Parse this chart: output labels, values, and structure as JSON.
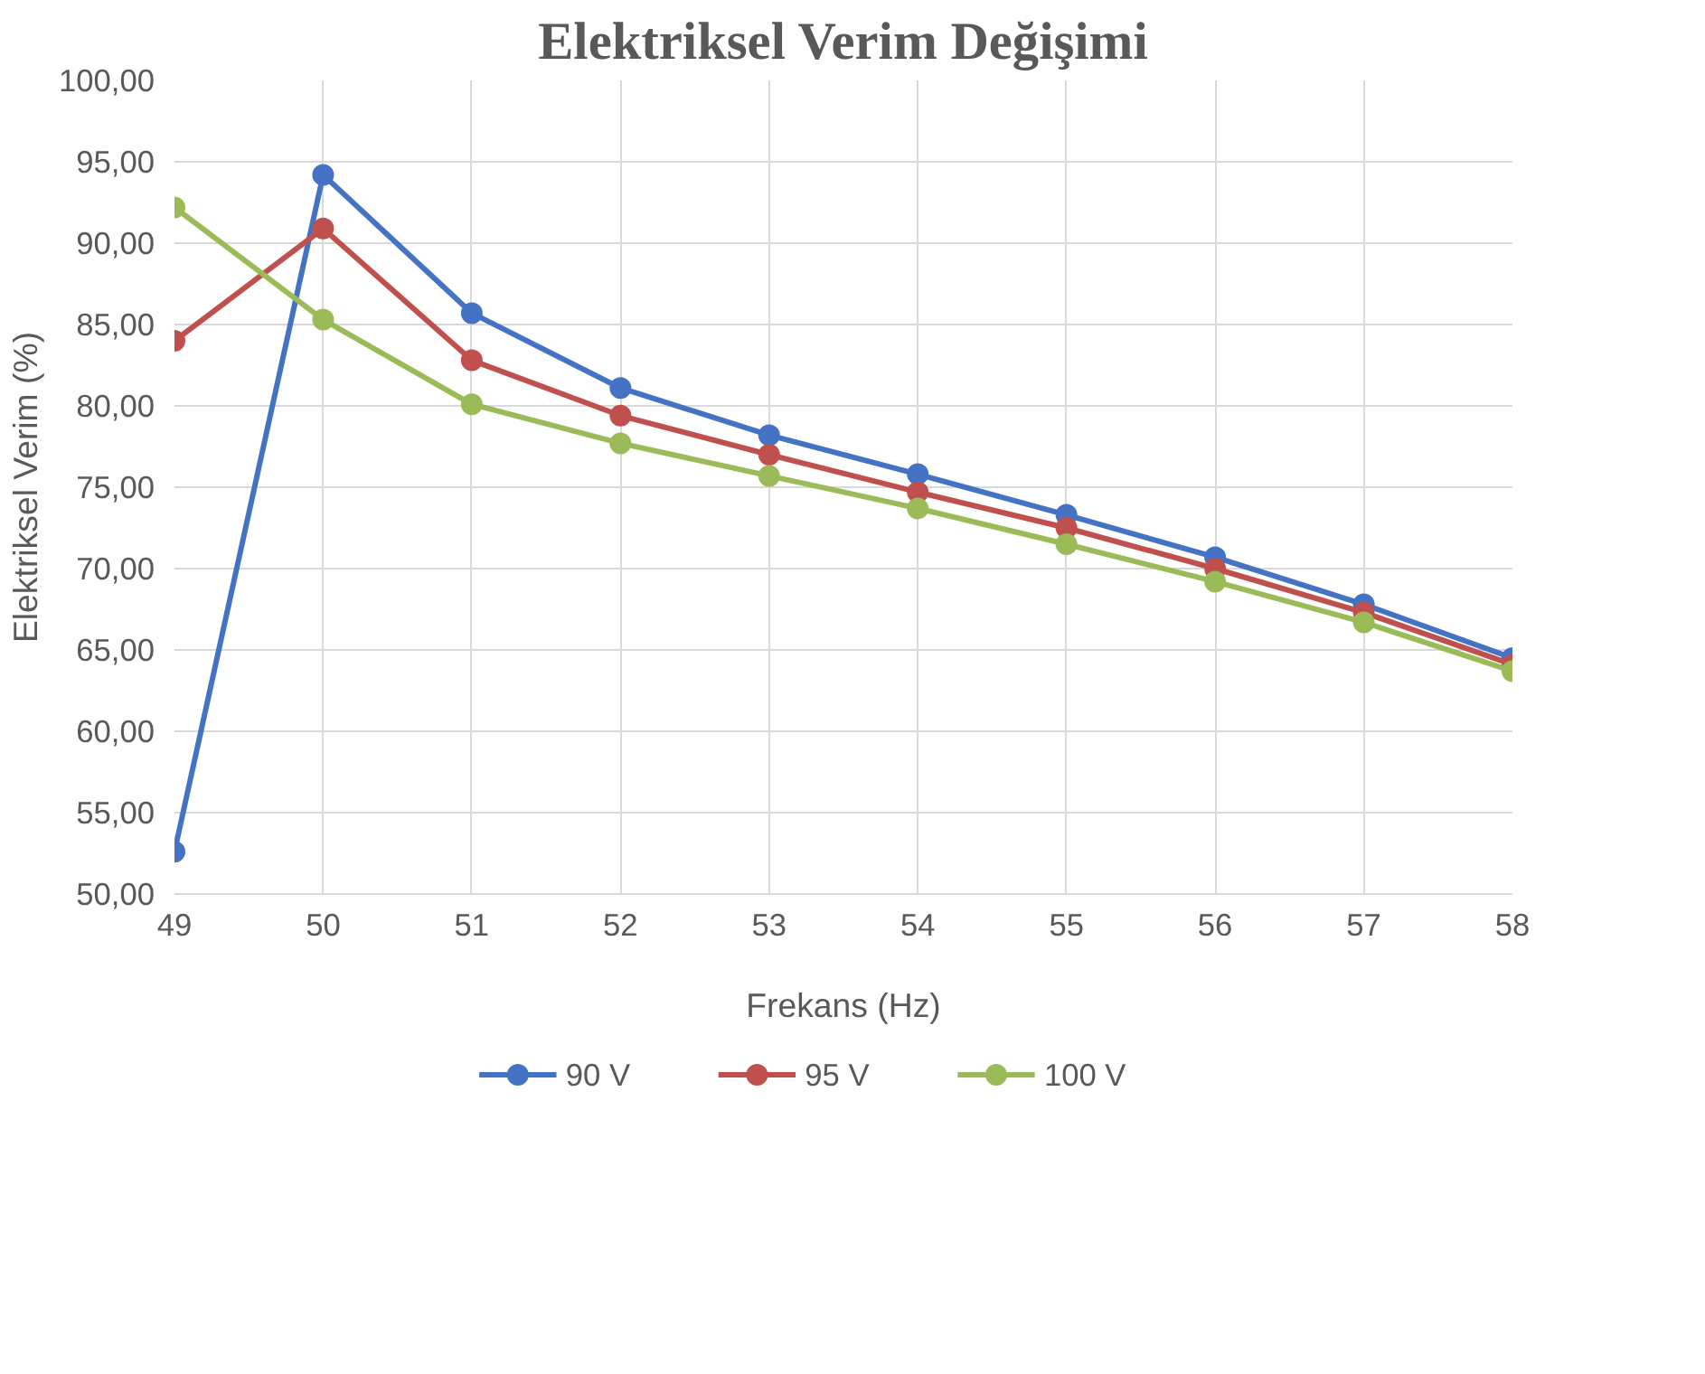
{
  "chart_data": {
    "type": "line",
    "title": "Elektriksel Verim Değişimi",
    "xlabel": "Frekans (Hz)",
    "ylabel": "Elektriksel Verim (%)",
    "x": [
      49,
      50,
      51,
      52,
      53,
      54,
      55,
      56,
      57,
      58
    ],
    "series": [
      {
        "name": "90 V",
        "color": "#4472c4",
        "values": [
          52.6,
          94.2,
          85.7,
          81.1,
          78.2,
          75.8,
          73.3,
          70.7,
          67.8,
          64.5
        ]
      },
      {
        "name": "95 V",
        "color": "#c0504d",
        "values": [
          84.0,
          90.9,
          82.8,
          79.4,
          77.0,
          74.7,
          72.5,
          70.0,
          67.3,
          64.1
        ]
      },
      {
        "name": "100 V",
        "color": "#9bbb59",
        "values": [
          92.2,
          85.3,
          80.1,
          77.7,
          75.7,
          73.7,
          71.5,
          69.2,
          66.7,
          63.7
        ]
      }
    ],
    "xlim": [
      49,
      58
    ],
    "xticks": [
      49,
      50,
      51,
      52,
      53,
      54,
      55,
      56,
      57,
      58
    ],
    "ylim": [
      50,
      100
    ],
    "yticks": [
      {
        "value": 50,
        "label": "50,00"
      },
      {
        "value": 55,
        "label": "55,00"
      },
      {
        "value": 60,
        "label": "60,00"
      },
      {
        "value": 65,
        "label": "65,00"
      },
      {
        "value": 70,
        "label": "70,00"
      },
      {
        "value": 75,
        "label": "75,00"
      },
      {
        "value": 80,
        "label": "80,00"
      },
      {
        "value": 85,
        "label": "85,00"
      },
      {
        "value": 90,
        "label": "90,00"
      },
      {
        "value": 95,
        "label": "95,00"
      },
      {
        "value": 100,
        "label": "100,00"
      }
    ],
    "grid": true,
    "legend": "bottom",
    "marker": "circle",
    "line_style": "solid"
  }
}
